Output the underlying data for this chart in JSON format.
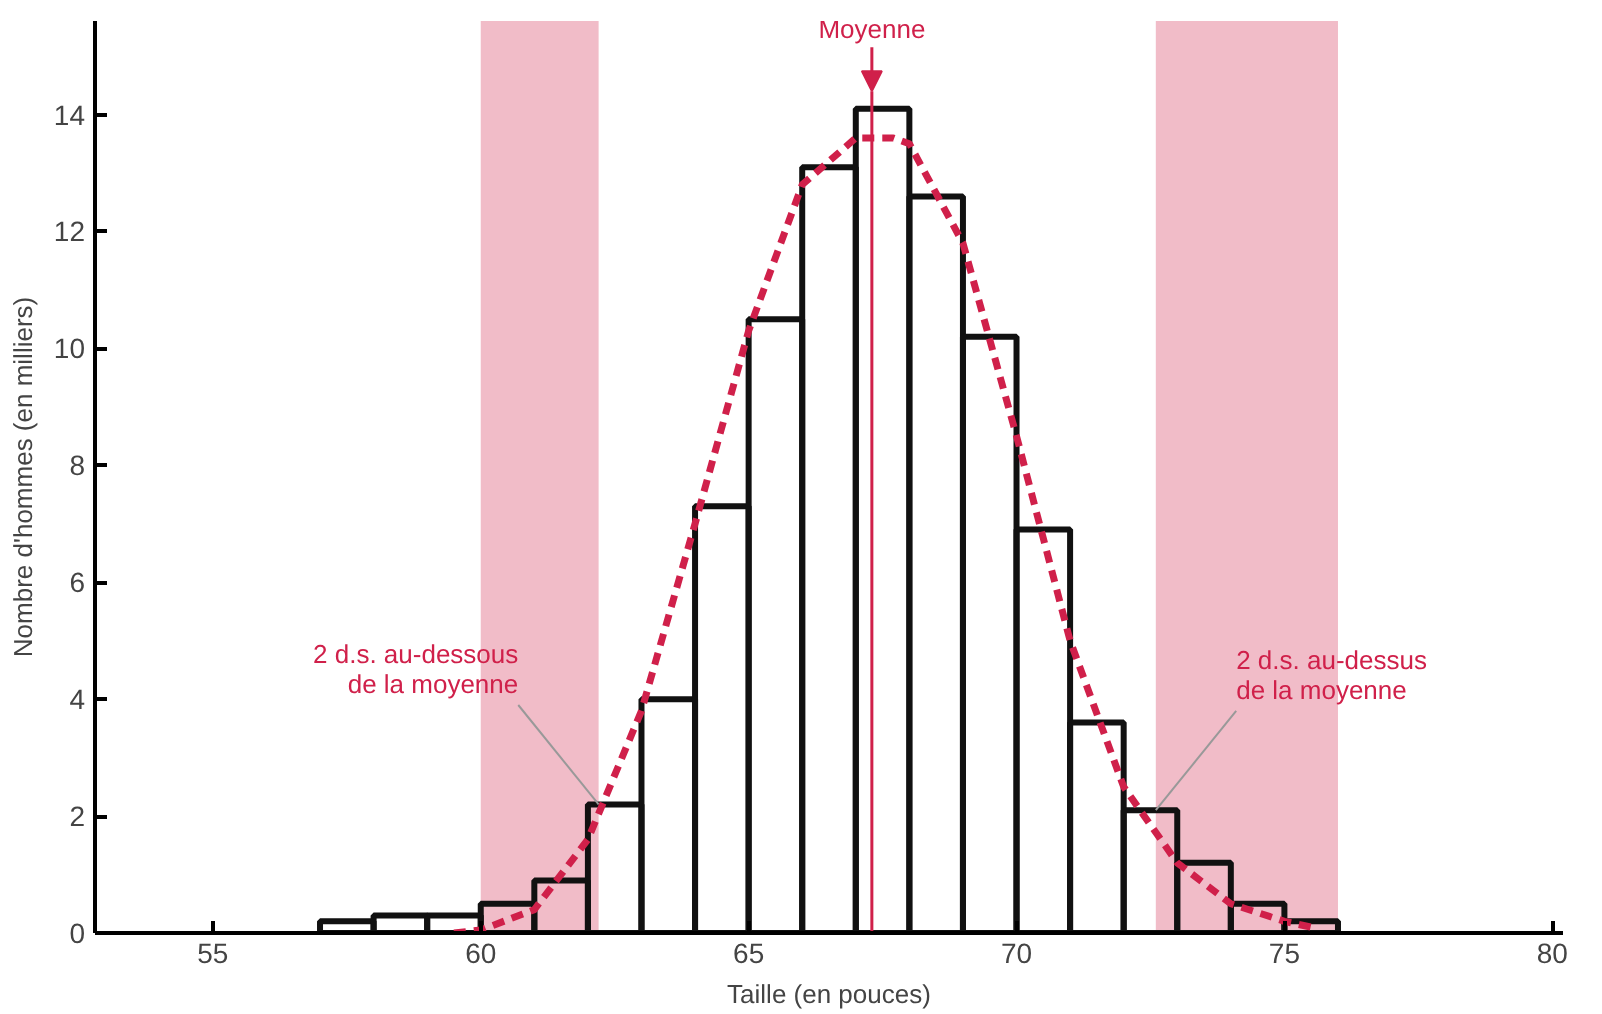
{
  "chart_data": {
    "type": "histogram",
    "xlabel": "Taille (en pouces)",
    "ylabel": "Nombre d'hommes (en milliers)",
    "bins": [
      57,
      58,
      59,
      60,
      61,
      62,
      63,
      64,
      65,
      66,
      67,
      68,
      69,
      70,
      71,
      72,
      73,
      74,
      75,
      76
    ],
    "values": [
      0.2,
      0.3,
      0.3,
      0.5,
      0.9,
      2.2,
      4.0,
      7.3,
      10.5,
      13.1,
      14.1,
      12.6,
      10.2,
      6.9,
      3.6,
      2.1,
      1.2,
      0.5,
      0.2
    ],
    "color": "#111111",
    "series": [
      {
        "type": "line",
        "color": "#d0204a",
        "line_style": "dashed",
        "x": [
          59.5,
          60,
          61,
          62,
          63,
          64,
          65,
          66,
          67,
          67.7,
          68,
          69,
          70,
          71,
          72,
          73,
          74,
          75,
          75.5
        ],
        "values": [
          0,
          0.05,
          0.4,
          1.6,
          3.8,
          7,
          10.3,
          12.8,
          13.6,
          13.6,
          13.5,
          11.8,
          8.5,
          5,
          2.5,
          1.2,
          0.5,
          0.2,
          0.1
        ]
      }
    ],
    "ref_lines": [
      {
        "axis": "x",
        "value": 67.3,
        "label": "Moyenne",
        "color": "#d0204a"
      }
    ],
    "bands": [
      {
        "axis": "x",
        "from": 60,
        "to": 62.2,
        "color": "#d0204a"
      },
      {
        "axis": "x",
        "from": 72.6,
        "to": 76,
        "color": "#d0204a"
      }
    ],
    "annotations": [
      {
        "text": "2 d.s. au-dessous\nde la moyenne",
        "x": 62.2,
        "y": 2.2
      },
      {
        "text": "2 d.s. au-dessus\nde la moyenne",
        "x": 72.6,
        "y": 2.1
      }
    ],
    "xlim": [
      52.8,
      80.2
    ],
    "ylim": [
      0,
      15.6
    ],
    "xticks": [
      55,
      60,
      65,
      70,
      75,
      80
    ],
    "yticks": [
      0,
      2,
      4,
      6,
      8,
      10,
      12,
      14
    ],
    "grid": false
  }
}
